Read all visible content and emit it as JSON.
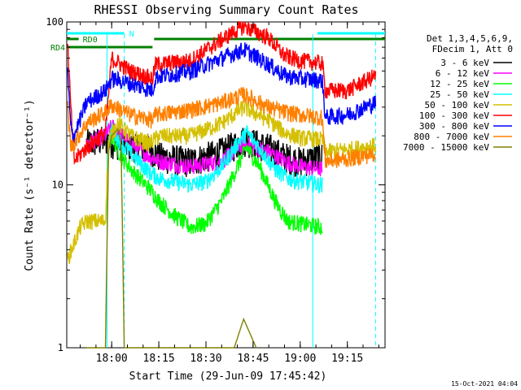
{
  "chart_data": {
    "type": "line",
    "title": "RHESSI Observing Summary Count Rates",
    "xlabel": "Start Time (29-Jun-09 17:45:42)",
    "ylabel": "Count Rate (s⁻¹ detector⁻¹)",
    "y_scale": "log",
    "ylim": [
      1,
      100
    ],
    "y_ticks": [
      1,
      10,
      100
    ],
    "y_tick_labels": [
      "1",
      "10",
      "100"
    ],
    "xlim": [
      "17:45:42",
      "19:27:00"
    ],
    "x_ticks": [
      "18:00",
      "18:15",
      "18:30",
      "18:45",
      "19:00",
      "19:15"
    ],
    "x_tick_labels": [
      "18:00",
      "18:15",
      "18:30",
      "18:45",
      "19:00",
      "19:15"
    ],
    "legend_header": [
      "Det 1,3,4,5,6,9,",
      "FDecim 1, Att 0"
    ],
    "legend_position": "right",
    "timestamp": "15-Oct-2021 04:04",
    "flags": [
      {
        "label": "N",
        "color": "#00ffff",
        "intervals": [
          [
            "17:45:42",
            "18:04:00"
          ],
          [
            "19:05:30",
            "19:27:00"
          ]
        ]
      },
      {
        "label": "RD0",
        "color": "#008000",
        "intervals": [
          [
            "17:45:42",
            "17:49:30"
          ],
          [
            "18:13:30",
            "19:27:00"
          ]
        ]
      },
      {
        "label": "RD4",
        "color": "#008000",
        "intervals": [
          [
            "17:45:42",
            "18:13:00"
          ]
        ]
      }
    ],
    "vlines": [
      {
        "time": "17:58:30",
        "style": "solid",
        "color": "#00ffff"
      },
      {
        "time": "18:04:00",
        "style": "dashed",
        "color": "#00ffff"
      },
      {
        "time": "19:04:00",
        "style": "solid",
        "color": "#00ffff"
      },
      {
        "time": "19:24:00",
        "style": "dashed",
        "color": "#00ffff"
      }
    ],
    "series": [
      {
        "name": "3 - 6 keV",
        "color": "#000000",
        "x": [
          "17:52",
          "17:58",
          "18:02",
          "18:12",
          "18:15",
          "18:25",
          "18:35",
          "18:42",
          "18:50",
          "18:55",
          "19:00",
          "19:07"
        ],
        "y": [
          18,
          19,
          18,
          17,
          15,
          14,
          16,
          19,
          17,
          15,
          14,
          15
        ]
      },
      {
        "name": "6 - 12 keV",
        "color": "#ff00ff",
        "x": [
          "17:52",
          "17:58",
          "18:00",
          "18:06",
          "18:12",
          "18:15",
          "18:25",
          "18:35",
          "18:42",
          "18:50",
          "18:55",
          "19:00",
          "19:07"
        ],
        "y": [
          18,
          20,
          23,
          18,
          15,
          14,
          13,
          14,
          18,
          16,
          14,
          13,
          12.5
        ]
      },
      {
        "name": "12 - 25 keV",
        "color": "#00ff00",
        "x": [
          "17:59",
          "18:00",
          "18:03",
          "18:07",
          "18:12",
          "18:15",
          "18:20",
          "18:25",
          "18:30",
          "18:35",
          "18:40",
          "18:43",
          "18:47",
          "18:52",
          "18:56",
          "19:00",
          "19:07"
        ],
        "y": [
          18,
          20,
          15,
          12,
          9.5,
          8,
          6.5,
          5.5,
          5.8,
          8,
          13,
          17,
          13,
          8,
          6,
          5.8,
          5.5
        ]
      },
      {
        "name": "25 - 50 keV",
        "color": "#00ffff",
        "x": [
          "17:59",
          "18:00",
          "18:03",
          "18:07",
          "18:12",
          "18:15",
          "18:20",
          "18:25",
          "18:30",
          "18:35",
          "18:40",
          "18:43",
          "18:47",
          "18:52",
          "18:56",
          "19:00",
          "19:07"
        ],
        "y": [
          18,
          22,
          18,
          15,
          12,
          11,
          10.5,
          10,
          10.5,
          13,
          18,
          21,
          17,
          12.5,
          11,
          10.5,
          10
        ]
      },
      {
        "name": "50 - 100 keV",
        "color": "#d4c000",
        "x": [
          "17:46",
          "17:50",
          "17:52",
          "17:58",
          "17:59",
          "18:02",
          "18:06",
          "18:12",
          "18:15",
          "18:25",
          "18:35",
          "18:42",
          "18:50",
          "18:55",
          "19:00",
          "19:07",
          "19:08",
          "19:15",
          "19:24"
        ],
        "y": [
          3.5,
          5.5,
          6,
          6,
          19,
          24,
          20,
          18,
          20,
          20,
          24,
          30,
          25,
          21,
          19.5,
          19,
          16,
          16.5,
          17.5
        ]
      },
      {
        "name": "100 - 300 keV",
        "color": "#ff0000",
        "x": [
          "17:46",
          "17:47",
          "17:48",
          "17:52",
          "17:58",
          "18:00",
          "18:06",
          "18:13",
          "18:14",
          "18:25",
          "18:35",
          "18:42",
          "18:50",
          "18:55",
          "19:00",
          "19:07",
          "19:08",
          "19:15",
          "19:24"
        ],
        "y": [
          70,
          30,
          14,
          17,
          21,
          60,
          50,
          45,
          55,
          58,
          78,
          95,
          80,
          62,
          58,
          56,
          38,
          38,
          47
        ]
      },
      {
        "name": "300 - 800 keV",
        "color": "#0000ff",
        "x": [
          "17:46",
          "17:47",
          "17:48",
          "17:52",
          "17:58",
          "18:00",
          "18:06",
          "18:13",
          "18:14",
          "18:25",
          "18:35",
          "18:42",
          "18:50",
          "18:55",
          "19:00",
          "19:07",
          "19:08",
          "19:15",
          "19:24"
        ],
        "y": [
          48,
          22,
          20,
          32,
          38,
          45,
          42,
          38,
          46,
          50,
          60,
          68,
          55,
          47,
          45,
          44,
          26,
          27,
          32
        ]
      },
      {
        "name": "800 - 7000 keV",
        "color": "#ff8000",
        "x": [
          "17:46",
          "17:47",
          "17:48",
          "17:52",
          "17:58",
          "18:00",
          "18:06",
          "18:13",
          "18:14",
          "18:25",
          "18:35",
          "18:42",
          "18:50",
          "18:55",
          "19:00",
          "19:07",
          "19:08",
          "19:15",
          "19:24"
        ],
        "y": [
          30,
          17,
          18,
          24,
          28,
          31,
          27,
          25,
          27,
          29,
          32,
          36,
          30,
          28,
          27,
          26,
          14,
          14.5,
          15.5
        ]
      },
      {
        "name": "7000 - 15000 keV",
        "color": "#808000",
        "x": [
          "17:52",
          "17:58",
          "17:59",
          "18:00",
          "18:02",
          "18:03",
          "18:04",
          "18:06",
          "18:12",
          "18:39",
          "18:42",
          "18:46"
        ],
        "y": [
          1,
          1,
          16,
          20,
          22,
          18,
          1,
          1,
          1,
          1,
          1.5,
          1
        ]
      }
    ]
  }
}
